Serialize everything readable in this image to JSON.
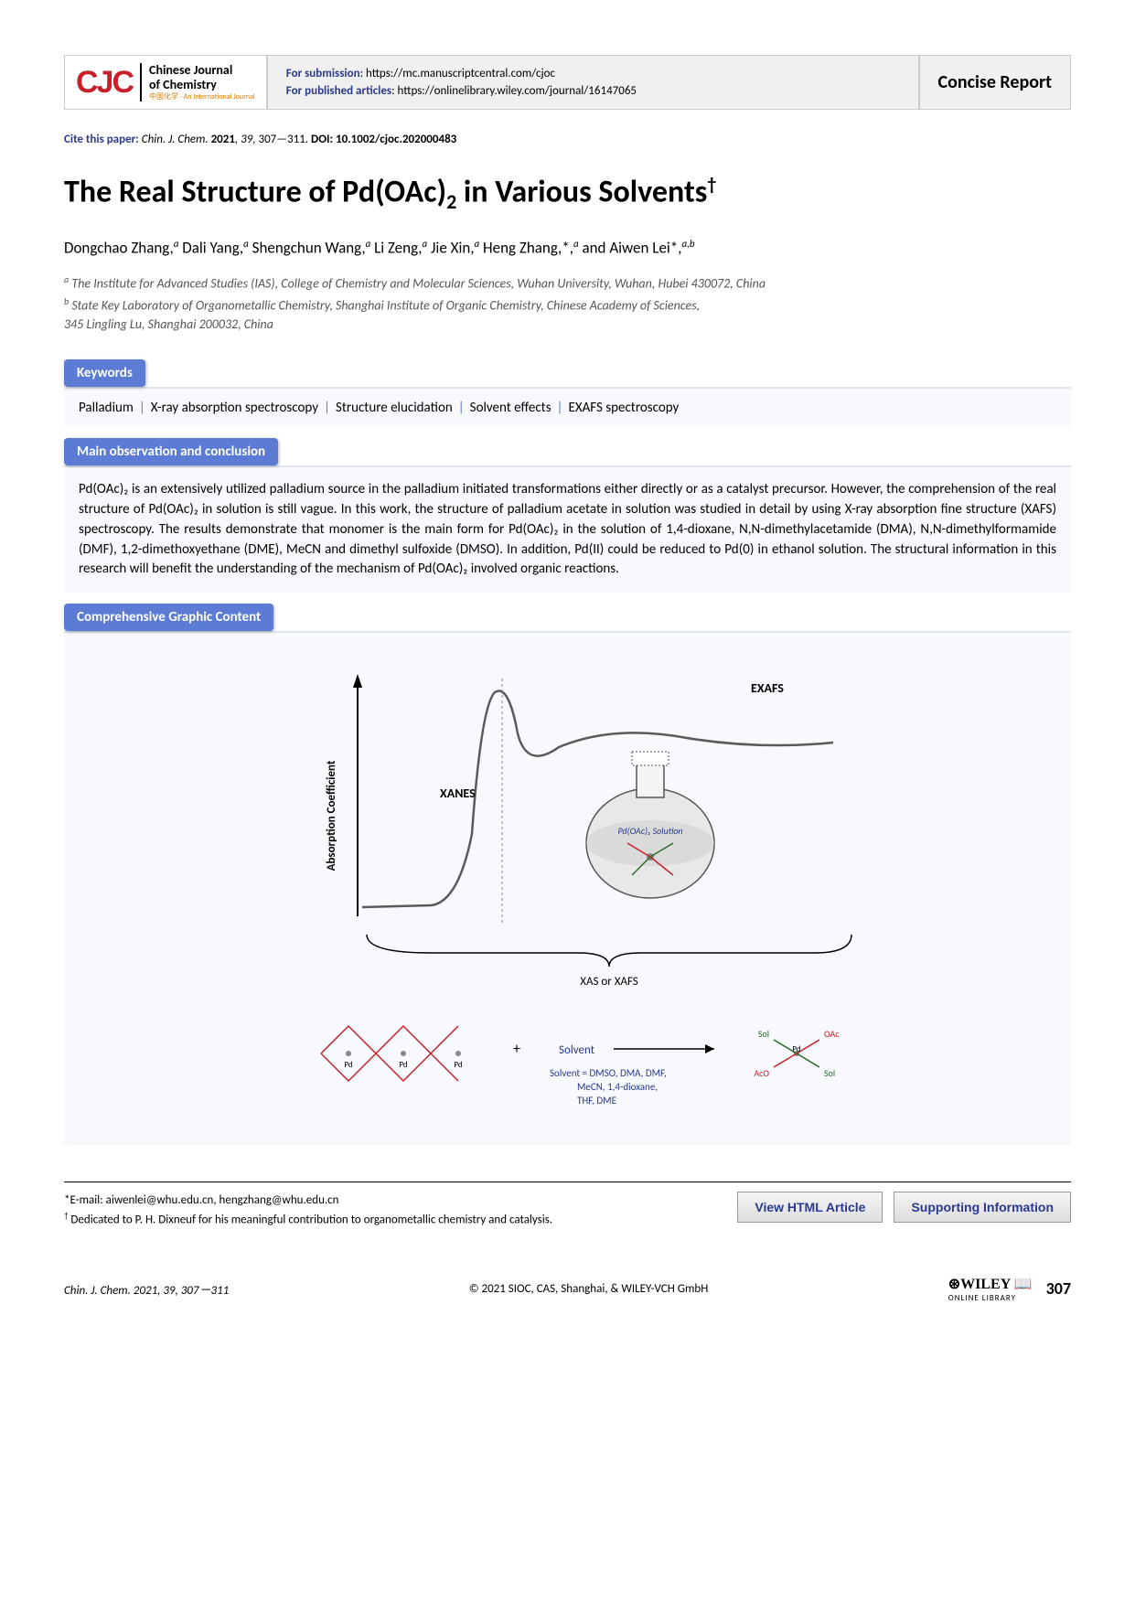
{
  "header": {
    "logo_abbr": "CJC",
    "journal_name_1": "Chinese Journal",
    "journal_name_2": "of Chemistry",
    "journal_tagline": "中国化学 · An International Journal",
    "submission_label": "For submission",
    "submission_url": ": https://mc.manuscriptcentral.com/cjoc",
    "published_label": "For published articles",
    "published_url": ": https://onlinelibrary.wiley.com/journal/16147065",
    "report_type": "Concise Report"
  },
  "cite": {
    "prefix": "Cite this paper: ",
    "journal": "Chin. J. Chem. ",
    "year": "2021",
    "vol": ", 39, ",
    "pages": "307—311. ",
    "doi_label": "DOI: ",
    "doi": "10.1002/cjoc.202000483"
  },
  "title_parts": {
    "p1": "The Real Structure of Pd(OAc)",
    "sub": "2",
    "p2": " in Various Solvents",
    "sup": "†"
  },
  "authors_html": "Dongchao Zhang,ᵃ Dali Yang,ᵃ Shengchun Wang,ᵃ Li Zeng,ᵃ Jie Xin,ᵃ Heng Zhang,*,ᵃ and Aiwen Lei*,ᵃ,ᵇ",
  "authors": [
    {
      "name": "Dongchao Zhang,",
      "sup": "a"
    },
    {
      "name": " Dali Yang,",
      "sup": "a"
    },
    {
      "name": " Shengchun Wang,",
      "sup": "a"
    },
    {
      "name": " Li Zeng,",
      "sup": "a"
    },
    {
      "name": " Jie Xin,",
      "sup": "a"
    },
    {
      "name": " Heng Zhang,*,",
      "sup": "a"
    },
    {
      "name": " and Aiwen Lei*,",
      "sup": "a,b"
    }
  ],
  "affiliations": [
    {
      "sup": "a",
      "text": " The Institute for Advanced Studies (IAS), College of Chemistry and Molecular Sciences, Wuhan University, Wuhan, Hubei 430072, China"
    },
    {
      "sup": "b",
      "text": " State Key Laboratory of Organometallic Chemistry, Shanghai Institute of Organic Chemistry, Chinese Academy of Sciences,"
    },
    {
      "sup": "",
      "text": " 345 Lingling Lu, Shanghai 200032, China"
    }
  ],
  "sections": {
    "keywords_label": "Keywords",
    "keywords": [
      "Palladium",
      "X-ray absorption spectroscopy",
      "Structure elucidation",
      "Solvent effects",
      "EXAFS spectroscopy"
    ],
    "main_label": "Main observation and conclusion",
    "abstract": "Pd(OAc)₂ is an extensively utilized palladium source in the palladium initiated transformations either directly or as a catalyst precursor. However, the comprehension of the real structure of Pd(OAc)₂ in solution is still vague. In this work, the structure of palladium acetate in solution was studied in detail by using X-ray absorption fine structure (XAFS) spectroscopy. The results demonstrate that monomer is the main form for Pd(OAc)₂ in the solution of 1,4-dioxane, N,N-dimethylacetamide (DMA), N,N-dimethylformamide (DMF), 1,2-dimethoxyethane (DME), MeCN and dimethyl sulfoxide (DMSO). In addition, Pd(II) could be reduced to Pd(0) in ethanol solution. The structural information in this research will benefit the understanding of the mechanism of Pd(OAc)₂ involved organic reactions.",
    "graphic_label": "Comprehensive Graphic Content"
  },
  "graphic": {
    "y_axis_label": "Absorption Coefficient",
    "xanes_label": "XANES",
    "exafs_label": "EXAFS",
    "xas_label": "XAS or XAFS",
    "flask_label": "Pd(OAc)₂ Solution",
    "solvent_label": "Solvent",
    "solvent_list_1": "Solvent = DMSO, DMA, DMF,",
    "solvent_list_2": "MeCN, 1,4-dioxane,",
    "solvent_list_3": "THF, DME",
    "product_labels": {
      "sol1": "Sol",
      "sol2": "Sol",
      "oac": "OAc",
      "aco": "AcO",
      "pd": "Pd"
    },
    "plus": "+",
    "curve_color": "#5a5a5a",
    "axis_color": "#000000",
    "text_color": "#000000",
    "solvent_color": "#2a3b8f",
    "structure_red": "#c8202a",
    "structure_gray": "#888888",
    "flask_fill": "#e8e8e8",
    "flask_shadow": "#aaa",
    "background": "#f7f9fc"
  },
  "footer": {
    "email_line": "*E-mail: aiwenlei@whu.edu.cn, hengzhang@whu.edu.cn",
    "dedication": " Dedicated to P. H. Dixneuf for his meaningful contribution to organometallic chemistry and catalysis.",
    "dedication_sup": "†",
    "btn_html": "View HTML Article",
    "btn_si": "Supporting Information"
  },
  "page_footer": {
    "left": "Chin. J. Chem. 2021, 39, 307－311",
    "center": "© 2021 SIOC, CAS, Shanghai, & WILEY-VCH GmbH",
    "wiley": "WILEY",
    "wiley_sub": "ONLINE LIBRARY",
    "page": "307"
  },
  "colors": {
    "badge_bg": "#5b7bd5",
    "brand_red": "#c8202a",
    "link_blue": "#2a3b8f",
    "section_bg": "#f7f9fc"
  }
}
